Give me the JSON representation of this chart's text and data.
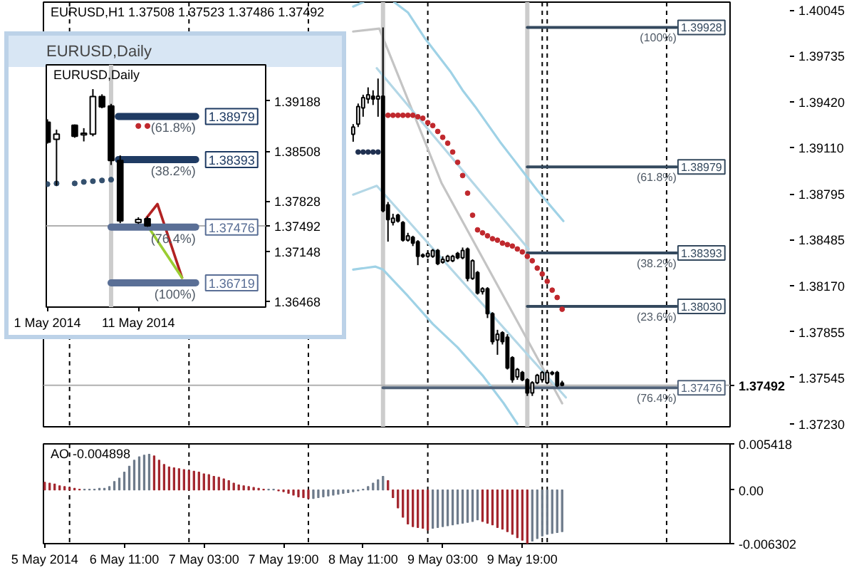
{
  "chart_data": [
    {
      "type": "candlestick",
      "title": "EURUSD,H1 1.37508 1.37523 1.37486 1.37492",
      "color": "#000000",
      "x": [
        "2014-05-08T09:00",
        "2014-05-08T10:00",
        "2014-05-08T11:00",
        "2014-05-08T12:00",
        "2014-05-08T13:00",
        "2014-05-08T14:00",
        "2014-05-08T15:00",
        "2014-05-08T16:00",
        "2014-05-08T17:00",
        "2014-05-08T18:00",
        "2014-05-08T19:00",
        "2014-05-08T20:00",
        "2014-05-08T21:00",
        "2014-05-08T22:00",
        "2014-05-08T23:00",
        "2014-05-09T00:00",
        "2014-05-09T01:00",
        "2014-05-09T02:00",
        "2014-05-09T03:00",
        "2014-05-09T04:00",
        "2014-05-09T05:00",
        "2014-05-09T06:00",
        "2014-05-09T07:00",
        "2014-05-09T08:00",
        "2014-05-09T09:00",
        "2014-05-09T10:00",
        "2014-05-09T11:00",
        "2014-05-09T12:00",
        "2014-05-09T13:00",
        "2014-05-09T14:00",
        "2014-05-09T15:00",
        "2014-05-09T16:00",
        "2014-05-09T17:00",
        "2014-05-09T18:00",
        "2014-05-09T19:00",
        "2014-05-09T20:00",
        "2014-05-09T21:00",
        "2014-05-09T22:00",
        "2014-05-09T23:00",
        "2014-05-10T00:00",
        "2014-05-10T01:00",
        "2014-05-10T02:00",
        "2014-05-10T03:00"
      ],
      "ohlc": [
        [
          1.392,
          1.3927,
          1.3915,
          1.3925
        ],
        [
          1.3927,
          1.3941,
          1.3925,
          1.3939
        ],
        [
          1.3938,
          1.3947,
          1.3932,
          1.3945
        ],
        [
          1.3944,
          1.3952,
          1.3941,
          1.3947
        ],
        [
          1.3946,
          1.395,
          1.394,
          1.3944
        ],
        [
          1.3944,
          1.3958,
          1.3932,
          1.3946
        ],
        [
          1.3946,
          1.39928,
          1.3867,
          1.3868
        ],
        [
          1.3872,
          1.3874,
          1.3847,
          1.3862
        ],
        [
          1.386,
          1.3866,
          1.3858,
          1.3863
        ],
        [
          1.3865,
          1.3866,
          1.386,
          1.3861
        ],
        [
          1.386,
          1.3861,
          1.3847,
          1.3848
        ],
        [
          1.3848,
          1.3853,
          1.3847,
          1.3851
        ],
        [
          1.385,
          1.3851,
          1.3844,
          1.3846
        ],
        [
          1.3847,
          1.3848,
          1.3831,
          1.3837
        ],
        [
          1.3837,
          1.3839,
          1.3836,
          1.3838
        ],
        [
          1.3837,
          1.384,
          1.3836,
          1.3839
        ],
        [
          1.3837,
          1.3842,
          1.3836,
          1.3841
        ],
        [
          1.3841,
          1.3842,
          1.3831,
          1.3832
        ],
        [
          1.3833,
          1.3837,
          1.3832,
          1.3835
        ],
        [
          1.3834,
          1.3838,
          1.3833,
          1.3837
        ],
        [
          1.3834,
          1.3838,
          1.3833,
          1.3837
        ],
        [
          1.3839,
          1.384,
          1.3835,
          1.3836
        ],
        [
          1.3836,
          1.3843,
          1.3835,
          1.3841
        ],
        [
          1.3842,
          1.3843,
          1.382,
          1.3822
        ],
        [
          1.3822,
          1.3835,
          1.3821,
          1.3834
        ],
        [
          1.3826,
          1.3827,
          1.3811,
          1.3812
        ],
        [
          1.3813,
          1.3816,
          1.3811,
          1.3815
        ],
        [
          1.3815,
          1.3816,
          1.3795,
          1.3798
        ],
        [
          1.3798,
          1.3799,
          1.3777,
          1.3779
        ],
        [
          1.378,
          1.3787,
          1.377,
          1.3784
        ],
        [
          1.3785,
          1.3786,
          1.3777,
          1.3779
        ],
        [
          1.3782,
          1.3784,
          1.376,
          1.3761
        ],
        [
          1.3768,
          1.3769,
          1.3751,
          1.3753
        ],
        [
          1.3755,
          1.3761,
          1.3753,
          1.376
        ],
        [
          1.3758,
          1.3759,
          1.3752,
          1.3753
        ],
        [
          1.3753,
          1.3754,
          1.3742,
          1.3744
        ],
        [
          1.3744,
          1.3752,
          1.3742,
          1.3751
        ],
        [
          1.3751,
          1.3757,
          1.375,
          1.3756
        ],
        [
          1.3753,
          1.3759,
          1.3752,
          1.3758
        ],
        [
          1.3751,
          1.3759,
          1.375,
          1.3758
        ],
        [
          1.3758,
          1.3759,
          1.3756,
          1.3757
        ],
        [
          1.3758,
          1.3759,
          1.3748,
          1.3749
        ],
        [
          1.37508,
          1.37523,
          1.37486,
          1.37492
        ]
      ],
      "xlim": [
        "2014-05-05T18:45",
        "2014-05-11T12:45"
      ],
      "ylim": [
        1.3721,
        1.401
      ],
      "yticks": [
        1.40045,
        1.39735,
        {
          "value": 1.3942,
          "label": "1.39420"
        },
        {
          "value": 1.3911,
          "label": "1.39110"
        },
        1.38795,
        1.38485,
        {
          "value": 1.3817,
          "label": "1.38170"
        },
        1.37855,
        1.37545,
        {
          "value": 1.3723,
          "label": "1.37230"
        }
      ],
      "tick_labels": "y",
      "series": [
        {
          "type": "line",
          "color": "#9fd2e6",
          "x": [
            "2014-05-08T09:00",
            "2014-05-08T11:00",
            "2014-05-08T14:00",
            "2014-05-08T17:15",
            "2014-05-08T20:00",
            "2014-05-08T23:30",
            "2014-05-09T02:00",
            "2014-05-09T04:30",
            "2014-05-09T07:00",
            "2014-05-09T09:30",
            "2014-05-09T12:00",
            "2014-05-09T14:30",
            "2014-05-09T17:00",
            "2014-05-09T19:30",
            "2014-05-09T22:00",
            "2014-05-10T00:30",
            "2014-05-10T03:15"
          ],
          "values": [
            1.4007,
            1.401,
            null,
            1.401,
            1.4003,
            1.3985,
            1.3974,
            1.3963,
            1.395,
            1.3939,
            1.3927,
            1.3915,
            1.3904,
            1.3893,
            1.3882,
            1.3872,
            1.3861
          ]
        },
        {
          "type": "line",
          "color": "#9fd2e6",
          "x": [
            "2014-05-08T09:00",
            "2014-05-08T13:30",
            "2014-05-08T15:00",
            "2014-05-08T20:00",
            "2014-05-09T01:00",
            "2014-05-09T06:00",
            "2014-05-09T11:00",
            "2014-05-09T15:15",
            "2014-05-09T18:00"
          ],
          "values": [
            1.3828,
            1.383,
            1.3828,
            1.381,
            1.3791,
            1.3775,
            1.3756,
            1.3737,
            1.3723
          ]
        },
        {
          "type": "line",
          "color": "#c4c4c4",
          "x": [
            "2014-05-08T09:00",
            "2014-05-08T14:15",
            "2014-05-09T02:45",
            "2014-05-10T03:00"
          ],
          "values": [
            1.399,
            1.3992,
            1.3887,
            1.3737
          ]
        },
        {
          "type": "line",
          "color": "#b3d7e6",
          "x": [
            "2014-05-08T13:45",
            "2014-05-09T20:15"
          ],
          "values": [
            1.3965,
            1.3842
          ]
        },
        {
          "type": "line",
          "color": "#b3d7e6",
          "x": [
            "2014-05-08T09:00",
            "2014-05-08T13:45",
            "2014-05-10T03:45"
          ],
          "values": [
            1.3879,
            1.3885,
            1.3741
          ]
        },
        {
          "type": "scatter",
          "marker": "circle",
          "color": "#c0282d",
          "x": [
            "2014-05-08T16:00",
            "2014-05-08T17:00",
            "2014-05-08T18:00",
            "2014-05-08T19:00",
            "2014-05-08T20:00",
            "2014-05-08T21:00",
            "2014-05-08T22:00",
            "2014-05-08T23:00",
            "2014-05-09T00:00",
            "2014-05-09T01:00",
            "2014-05-09T02:00",
            "2014-05-09T03:00",
            "2014-05-09T04:00",
            "2014-05-09T05:00",
            "2014-05-09T06:00",
            "2014-05-09T07:00",
            "2014-05-09T08:00",
            "2014-05-09T09:00",
            "2014-05-09T10:00",
            "2014-05-09T11:00",
            "2014-05-09T12:00",
            "2014-05-09T13:00",
            "2014-05-09T14:00",
            "2014-05-09T15:00",
            "2014-05-09T16:00",
            "2014-05-09T17:00",
            "2014-05-09T18:00",
            "2014-05-09T19:00",
            "2014-05-09T20:00",
            "2014-05-09T21:00",
            "2014-05-09T22:00",
            "2014-05-09T23:00",
            "2014-05-10T00:00",
            "2014-05-10T01:00",
            "2014-05-10T02:00",
            "2014-05-10T03:00"
          ],
          "values": [
            1.3933,
            1.3933,
            1.3933,
            1.3933,
            1.3933,
            1.3933,
            1.3932,
            1.3931,
            1.3928,
            1.3926,
            1.3922,
            1.3918,
            1.3914,
            1.3908,
            1.3901,
            1.3892,
            1.388,
            1.3865,
            1.3855,
            1.3853,
            1.3851,
            1.3849,
            1.3848,
            1.3846,
            1.3845,
            1.3844,
            1.3842,
            1.384,
            1.3837,
            1.3834,
            1.3829,
            1.3825,
            1.382,
            1.3814,
            1.3809,
            1.3801
          ]
        },
        {
          "type": "scatter",
          "marker": "circle",
          "color": "#1f3050",
          "x": [
            "2014-05-08T10:00",
            "2014-05-08T11:00",
            "2014-05-08T12:00",
            "2014-05-08T13:00",
            "2014-05-08T14:00"
          ],
          "values": [
            1.3908,
            1.3908,
            1.3908,
            1.3908,
            1.3908
          ]
        },
        {
          "type": "line",
          "name": "(100%)",
          "color": "#34495e",
          "x": [
            "2014-05-09T20:00",
            "2014-05-11T02:00"
          ],
          "values": [
            1.39928,
            1.39928
          ],
          "value_labels": [
            null,
            "1.39928"
          ]
        },
        {
          "type": "line",
          "name": "(61.8%)",
          "color": "#34495e",
          "x": [
            "2014-05-09T20:00",
            "2014-05-11T02:00"
          ],
          "values": [
            1.38979,
            1.38979
          ],
          "value_labels": [
            null,
            "1.38979"
          ]
        },
        {
          "type": "line",
          "name": "(38.2%)",
          "color": "#34495e",
          "x": [
            "2014-05-09T20:00",
            "2014-05-11T02:00"
          ],
          "values": [
            1.38393,
            1.38393
          ],
          "value_labels": [
            null,
            "1.38393"
          ]
        },
        {
          "type": "line",
          "name": "(23.6%)",
          "color": "#34495e",
          "x": [
            "2014-05-09T20:00",
            "2014-05-11T02:00"
          ],
          "values": [
            1.3803,
            1.3803
          ],
          "value_labels": [
            null,
            "1.38030"
          ]
        },
        {
          "type": "line",
          "name": "(76.4%)",
          "color": "#52637a",
          "x": [
            "2014-05-08T15:00",
            "2014-05-11T02:00"
          ],
          "values": [
            1.37476,
            1.37476
          ],
          "value_labels": [
            null,
            "1.37476"
          ]
        }
      ],
      "ref_lines": [
        {
          "axis": "x",
          "value": "2014-05-06T00:00",
          "line_style": "dashed",
          "color": "#000000"
        },
        {
          "axis": "x",
          "value": "2014-05-07T00:00",
          "line_style": "dashed",
          "color": "#000000"
        },
        {
          "axis": "x",
          "value": "2014-05-08T00:00",
          "line_style": "dashed",
          "color": "#000000"
        },
        {
          "axis": "x",
          "value": "2014-05-09T00:00",
          "line_style": "dashed",
          "color": "#000000"
        },
        {
          "axis": "x",
          "value": "2014-05-09T23:00",
          "line_style": "dashed",
          "color": "#000000"
        },
        {
          "axis": "x",
          "value": "2014-05-10T00:00",
          "line_style": "dashed",
          "color": "#000000"
        },
        {
          "axis": "x",
          "value": "2014-05-11T00:00",
          "line_style": "dashed",
          "color": "#000000"
        },
        {
          "axis": "x",
          "value": "2014-05-08T15:00",
          "color": "#cccccc"
        },
        {
          "axis": "x",
          "value": "2014-05-09T20:00",
          "color": "#cccccc"
        },
        {
          "axis": "y",
          "value": 1.37492,
          "label": "1.37492",
          "color": "#b0b0b0"
        }
      ]
    },
    {
      "type": "candlestick",
      "title": "EURUSD,Daily",
      "subtitle": "EURUSD,Daily",
      "color": "#000000",
      "x": [
        "2014-05-01",
        "2014-05-02",
        "2014-05-04",
        "2014-05-05",
        "2014-05-06",
        "2014-05-07",
        "2014-05-08",
        "2014-05-09",
        "2014-05-11",
        "2014-05-12"
      ],
      "ohlc": [
        [
          1.389,
          1.3894,
          1.3861,
          1.3863
        ],
        [
          1.3867,
          1.388,
          1.3804,
          1.3874
        ],
        [
          1.3886,
          1.3887,
          1.3869,
          1.3871
        ],
        [
          1.3873,
          1.3882,
          1.3864,
          1.3875
        ],
        [
          1.3874,
          1.3935,
          1.3871,
          1.3925
        ],
        [
          1.3925,
          1.3928,
          1.3909,
          1.3911
        ],
        [
          1.3912,
          1.3915,
          1.3832,
          1.3838
        ],
        [
          1.3838,
          1.3845,
          1.3753,
          1.3756
        ],
        [
          1.3754,
          1.3761,
          1.3752,
          1.3758
        ],
        [
          1.3759,
          1.3762,
          1.3748,
          1.37492
        ]
      ],
      "xlim": [
        "2014-04-30T21:00",
        "2014-05-25T00:00"
      ],
      "ylim": [
        1.3639,
        1.3968
      ],
      "xticks": [
        {
          "value": "2014-05-01",
          "label": "1 May 2014"
        },
        {
          "value": "2014-05-11",
          "label": "11 May 2014"
        }
      ],
      "yticks": [
        1.39188,
        1.38508,
        1.37828,
        1.37148,
        1.36468
      ],
      "series": [
        {
          "type": "scatter",
          "marker": "circle",
          "color": "#34506e",
          "x": [
            "2014-05-01",
            "2014-05-02",
            "2014-05-04",
            "2014-05-05",
            "2014-05-06",
            "2014-05-07",
            "2014-05-08"
          ],
          "values": [
            1.3806,
            1.3807,
            1.3807,
            1.3809,
            1.381,
            1.3811,
            1.3812
          ]
        },
        {
          "type": "scatter",
          "marker": "circle",
          "color": "#c0282d",
          "x": [
            "2014-05-11",
            "2014-05-12"
          ],
          "values": [
            1.3885,
            1.3885
          ]
        },
        {
          "type": "line",
          "color": "#b22222",
          "x": [
            "2014-05-11T21:36",
            "2014-05-13T02:24",
            "2014-05-15T19:12"
          ],
          "values": [
            1.376,
            1.3779,
            1.3679
          ]
        },
        {
          "type": "line",
          "color": "#9acd32",
          "x": [
            "2014-05-12T07:12",
            "2014-05-15T19:12"
          ],
          "values": [
            1.3744,
            1.3679
          ]
        },
        {
          "type": "line",
          "name": "(61.8%)",
          "color": "#1f3b63",
          "x": [
            "2014-05-08T19:12",
            "2014-05-17T07:12"
          ],
          "values": [
            1.38979,
            1.38979
          ],
          "value_labels": [
            null,
            "1.38979"
          ]
        },
        {
          "type": "line",
          "name": "(38.2%)",
          "color": "#1f3b63",
          "x": [
            "2014-05-08T19:12",
            "2014-05-17T07:12"
          ],
          "values": [
            1.38393,
            1.38393
          ],
          "value_labels": [
            null,
            "1.38393"
          ]
        },
        {
          "type": "line",
          "name": "(76.4%)",
          "color": "#5a6f96",
          "x": [
            "2014-05-08",
            "2014-05-17T07:12"
          ],
          "values": [
            1.37476,
            1.37476
          ],
          "value_labels": [
            null,
            "1.37476"
          ]
        },
        {
          "type": "line",
          "name": "(100%)",
          "color": "#5a6f96",
          "x": [
            "2014-05-08",
            "2014-05-17T07:12"
          ],
          "values": [
            1.36719,
            1.36719
          ],
          "value_labels": [
            null,
            "1.36719"
          ]
        }
      ],
      "ref_lines": [
        {
          "axis": "x",
          "value": "2014-05-08",
          "color": "#cccccc"
        },
        {
          "axis": "y",
          "value": 1.37492,
          "label": "1.37492",
          "color": "#b0b0b0"
        }
      ]
    },
    {
      "type": "bar",
      "title": "AO -0.004898",
      "x": [
        "2014-05-05T19:00",
        "2014-05-05T20:00",
        "2014-05-05T21:00",
        "2014-05-05T22:00",
        "2014-05-05T23:00",
        "2014-05-06T00:00",
        "2014-05-06T01:00",
        "2014-05-06T02:00",
        "2014-05-06T03:00",
        "2014-05-06T04:00",
        "2014-05-06T05:00",
        "2014-05-06T06:00",
        "2014-05-06T07:00",
        "2014-05-06T08:00",
        "2014-05-06T09:00",
        "2014-05-06T10:00",
        "2014-05-06T11:00",
        "2014-05-06T12:00",
        "2014-05-06T13:00",
        "2014-05-06T14:00",
        "2014-05-06T15:00",
        "2014-05-06T16:00",
        "2014-05-06T17:00",
        "2014-05-06T18:00",
        "2014-05-06T19:00",
        "2014-05-06T20:00",
        "2014-05-06T21:00",
        "2014-05-06T22:00",
        "2014-05-06T23:00",
        "2014-05-07T00:00",
        "2014-05-07T01:00",
        "2014-05-07T02:00",
        "2014-05-07T03:00",
        "2014-05-07T04:00",
        "2014-05-07T05:00",
        "2014-05-07T06:00",
        "2014-05-07T07:00",
        "2014-05-07T08:00",
        "2014-05-07T09:00",
        "2014-05-07T10:00",
        "2014-05-07T11:00",
        "2014-05-07T12:00",
        "2014-05-07T13:00",
        "2014-05-07T14:00",
        "2014-05-07T15:00",
        "2014-05-07T16:00",
        "2014-05-07T17:00",
        "2014-05-07T18:00",
        "2014-05-07T19:00",
        "2014-05-07T20:00",
        "2014-05-07T21:00",
        "2014-05-07T22:00",
        "2014-05-07T23:00",
        "2014-05-08T00:00",
        "2014-05-08T01:00",
        "2014-05-08T02:00",
        "2014-05-08T03:00",
        "2014-05-08T04:00",
        "2014-05-08T05:00",
        "2014-05-08T06:00",
        "2014-05-08T07:00",
        "2014-05-08T08:00",
        "2014-05-08T09:00",
        "2014-05-08T10:00",
        "2014-05-08T11:00",
        "2014-05-08T12:00",
        "2014-05-08T13:00",
        "2014-05-08T14:00",
        "2014-05-08T15:00",
        "2014-05-08T16:00",
        "2014-05-08T17:00",
        "2014-05-08T18:00",
        "2014-05-08T19:00",
        "2014-05-08T20:00",
        "2014-05-08T21:00",
        "2014-05-08T22:00",
        "2014-05-08T23:00",
        "2014-05-09T00:00",
        "2014-05-09T01:00",
        "2014-05-09T02:00",
        "2014-05-09T03:00",
        "2014-05-09T04:00",
        "2014-05-09T05:00",
        "2014-05-09T06:00",
        "2014-05-09T07:00",
        "2014-05-09T08:00",
        "2014-05-09T09:00",
        "2014-05-09T10:00",
        "2014-05-09T11:00",
        "2014-05-09T12:00",
        "2014-05-09T13:00",
        "2014-05-09T14:00",
        "2014-05-09T15:00",
        "2014-05-09T16:00",
        "2014-05-09T17:00",
        "2014-05-09T18:00",
        "2014-05-09T19:00",
        "2014-05-09T20:00",
        "2014-05-09T21:00",
        "2014-05-09T22:00",
        "2014-05-09T23:00",
        "2014-05-10T00:00",
        "2014-05-10T01:00",
        "2014-05-10T02:00",
        "2014-05-10T03:00"
      ],
      "values": [
        0.0009,
        0.0008,
        0.0007,
        0.0005,
        0.0004,
        0.0003,
        0.0002,
        0.0001,
        0.0001,
        0.0001,
        0.0001,
        0.0002,
        0.0002,
        0.0004,
        0.001,
        0.0014,
        0.0021,
        0.0028,
        0.0035,
        0.0039,
        0.0041,
        0.0042,
        0.004,
        0.0035,
        0.003,
        0.0027,
        0.0026,
        0.0025,
        0.0024,
        0.0023,
        0.0022,
        0.0021,
        0.0019,
        0.0018,
        0.0016,
        0.0015,
        0.0013,
        0.0011,
        0.0008,
        0.0006,
        0.0005,
        0.0004,
        0.0003,
        0.0002,
        0.0001,
        0.0001,
        0.0001,
        -0.0001,
        -0.0002,
        -0.0004,
        -0.0006,
        -0.0008,
        -0.0009,
        -0.001,
        -0.001,
        -0.0009,
        -0.0008,
        -0.0007,
        -0.0006,
        -0.0005,
        -0.0004,
        -0.0003,
        -0.0002,
        -0.0001,
        0.0001,
        0.0004,
        0.0008,
        0.0012,
        0.0016,
        0.0011,
        -0.0009,
        -0.0021,
        -0.0032,
        -0.004,
        -0.0043,
        -0.0044,
        -0.0045,
        -0.0047,
        -0.0045,
        -0.0044,
        -0.0043,
        -0.0042,
        -0.0041,
        -0.004,
        -0.0039,
        -0.0038,
        -0.0037,
        -0.0035,
        -0.0037,
        -0.0039,
        -0.0041,
        -0.0044,
        -0.0046,
        -0.0049,
        -0.0052,
        -0.0056,
        -0.0059,
        -0.006302,
        -0.006,
        -0.0057,
        -0.0054,
        -0.0052,
        -0.0051,
        -0.005,
        -0.004898
      ],
      "colors": [
        "#a3262e",
        "#a3262e",
        "#a3262e",
        "#a3262e",
        "#a3262e",
        "#a3262e",
        "#a3262e",
        "#a3262e",
        "#6e7b8b",
        "#6e7b8b",
        "#6e7b8b",
        "#6e7b8b",
        "#6e7b8b",
        "#6e7b8b",
        "#6e7b8b",
        "#6e7b8b",
        "#6e7b8b",
        "#6e7b8b",
        "#6e7b8b",
        "#6e7b8b",
        "#6e7b8b",
        "#6e7b8b",
        "#a3262e",
        "#a3262e",
        "#a3262e",
        "#a3262e",
        "#a3262e",
        "#a3262e",
        "#a3262e",
        "#a3262e",
        "#a3262e",
        "#a3262e",
        "#a3262e",
        "#a3262e",
        "#a3262e",
        "#a3262e",
        "#a3262e",
        "#a3262e",
        "#a3262e",
        "#a3262e",
        "#a3262e",
        "#a3262e",
        "#a3262e",
        "#a3262e",
        "#a3262e",
        "#6e7b8b",
        "#6e7b8b",
        "#a3262e",
        "#a3262e",
        "#a3262e",
        "#a3262e",
        "#a3262e",
        "#a3262e",
        "#a3262e",
        "#6e7b8b",
        "#6e7b8b",
        "#6e7b8b",
        "#6e7b8b",
        "#6e7b8b",
        "#6e7b8b",
        "#6e7b8b",
        "#6e7b8b",
        "#6e7b8b",
        "#6e7b8b",
        "#6e7b8b",
        "#6e7b8b",
        "#6e7b8b",
        "#6e7b8b",
        "#6e7b8b",
        "#a3262e",
        "#a3262e",
        "#a3262e",
        "#a3262e",
        "#a3262e",
        "#a3262e",
        "#a3262e",
        "#a3262e",
        "#a3262e",
        "#6e7b8b",
        "#6e7b8b",
        "#6e7b8b",
        "#6e7b8b",
        "#6e7b8b",
        "#6e7b8b",
        "#6e7b8b",
        "#6e7b8b",
        "#6e7b8b",
        "#6e7b8b",
        "#a3262e",
        "#a3262e",
        "#a3262e",
        "#a3262e",
        "#a3262e",
        "#a3262e",
        "#a3262e",
        "#a3262e",
        "#a3262e",
        "#a3262e",
        "#6e7b8b",
        "#6e7b8b",
        "#6e7b8b",
        "#6e7b8b",
        "#6e7b8b",
        "#6e7b8b",
        "#6e7b8b"
      ],
      "xlim": [
        "2014-05-05T18:45",
        "2014-05-11T12:45"
      ],
      "ylim": [
        -0.006302,
        0.005418
      ],
      "xticks": [
        {
          "value": "2014-05-05T19:00",
          "label": "5 May 2014"
        },
        {
          "value": "2014-05-06T11:00",
          "label": "6 May 11:00"
        },
        {
          "value": "2014-05-07T03:00",
          "label": "7 May 03:00"
        },
        {
          "value": "2014-05-07T19:00",
          "label": "7 May 19:00"
        },
        {
          "value": "2014-05-08T11:00",
          "label": "8 May 11:00"
        },
        {
          "value": "2014-05-09T03:00",
          "label": "9 May 03:00"
        },
        {
          "value": "2014-05-09T19:00",
          "label": "9 May 19:00"
        }
      ],
      "yticks": [
        0.005418,
        {
          "value": 0,
          "label": "0.00"
        },
        -0.006302
      ],
      "ref_lines": [
        {
          "axis": "x",
          "value": "2014-05-06T00:00",
          "line_style": "dashed",
          "color": "#000000"
        },
        {
          "axis": "x",
          "value": "2014-05-07T00:00",
          "line_style": "dashed",
          "color": "#000000"
        },
        {
          "axis": "x",
          "value": "2014-05-08T00:00",
          "line_style": "dashed",
          "color": "#000000"
        },
        {
          "axis": "x",
          "value": "2014-05-09T00:00",
          "line_style": "dashed",
          "color": "#000000"
        },
        {
          "axis": "x",
          "value": "2014-05-09T23:00",
          "line_style": "dashed",
          "color": "#000000"
        },
        {
          "axis": "x",
          "value": "2014-05-10T00:00",
          "line_style": "dashed",
          "color": "#000000"
        },
        {
          "axis": "x",
          "value": "2014-05-11T00:00",
          "line_style": "dashed",
          "color": "#000000"
        }
      ]
    }
  ]
}
